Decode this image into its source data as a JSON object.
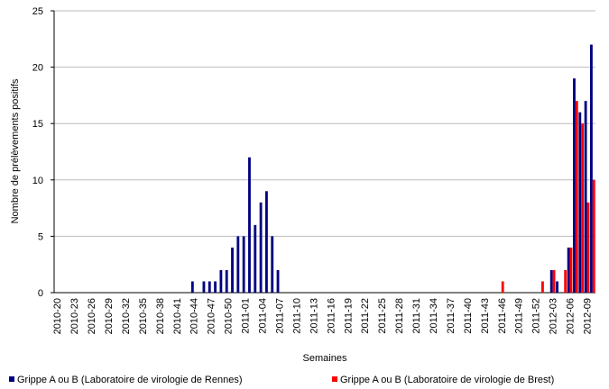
{
  "chart_data": {
    "type": "bar",
    "xlabel": "Semaines",
    "ylabel": "Nombre de prélèvements positifs",
    "categories": [
      "2010-20",
      null,
      null,
      "2010-23",
      null,
      null,
      "2010-26",
      null,
      null,
      "2010-29",
      null,
      null,
      "2010-32",
      null,
      null,
      "2010-35",
      null,
      null,
      "2010-38",
      null,
      null,
      "2010-41",
      null,
      null,
      "2010-44",
      null,
      null,
      "2010-47",
      null,
      null,
      "2010-50",
      null,
      null,
      "2011-01",
      null,
      null,
      "2011-04",
      null,
      null,
      "2011-07",
      null,
      null,
      "2011-10",
      null,
      null,
      "2011-13",
      null,
      null,
      "2011-16",
      null,
      null,
      "2011-19",
      null,
      null,
      "2011-22",
      null,
      null,
      "2011-25",
      null,
      null,
      "2011-28",
      null,
      null,
      "2011-31",
      null,
      null,
      "2011-34",
      null,
      null,
      "2011-37",
      null,
      null,
      "2011-40",
      null,
      null,
      "2011-43",
      null,
      null,
      "2011-46",
      null,
      null,
      "2011-49",
      null,
      null,
      "2011-52",
      null,
      null,
      "2012-03",
      null,
      null,
      "2012-06",
      null,
      null,
      "2012-09",
      null
    ],
    "series": [
      {
        "name": "Grippe A ou B (Laboratoire de virologie de Rennes)",
        "color": "#000080",
        "values": [
          0,
          0,
          0,
          0,
          0,
          0,
          0,
          0,
          0,
          0,
          0,
          0,
          0,
          0,
          0,
          0,
          0,
          0,
          0,
          0,
          0,
          0,
          0,
          0,
          1,
          0,
          1,
          1,
          1,
          2,
          2,
          4,
          5,
          5,
          12,
          6,
          8,
          9,
          5,
          2,
          0,
          0,
          0,
          0,
          0,
          0,
          0,
          0,
          0,
          0,
          0,
          0,
          0,
          0,
          0,
          0,
          0,
          0,
          0,
          0,
          0,
          0,
          0,
          0,
          0,
          0,
          0,
          0,
          0,
          0,
          0,
          0,
          0,
          0,
          0,
          0,
          0,
          0,
          0,
          0,
          0,
          0,
          0,
          0,
          0,
          0,
          0,
          2,
          1,
          0,
          4,
          19,
          16,
          17,
          22
        ]
      },
      {
        "name": "Grippe A ou B (Laboratoire de virologie de Brest)",
        "color": "#ff0000",
        "values": [
          0,
          0,
          0,
          0,
          0,
          0,
          0,
          0,
          0,
          0,
          0,
          0,
          0,
          0,
          0,
          0,
          0,
          0,
          0,
          0,
          0,
          0,
          0,
          0,
          0,
          0,
          0,
          0,
          0,
          0,
          0,
          0,
          0,
          0,
          0,
          0,
          0,
          0,
          0,
          0,
          0,
          0,
          0,
          0,
          0,
          0,
          0,
          0,
          0,
          0,
          0,
          0,
          0,
          0,
          0,
          0,
          0,
          0,
          0,
          0,
          0,
          0,
          0,
          0,
          0,
          0,
          0,
          0,
          0,
          0,
          0,
          0,
          0,
          0,
          0,
          0,
          0,
          0,
          1,
          0,
          0,
          0,
          0,
          0,
          0,
          1,
          0,
          2,
          0,
          2,
          4,
          17,
          15,
          8,
          10
        ]
      }
    ],
    "ylim": [
      0,
      25
    ],
    "yticks": [
      0,
      5,
      10,
      15,
      20,
      25
    ],
    "grid": true
  }
}
